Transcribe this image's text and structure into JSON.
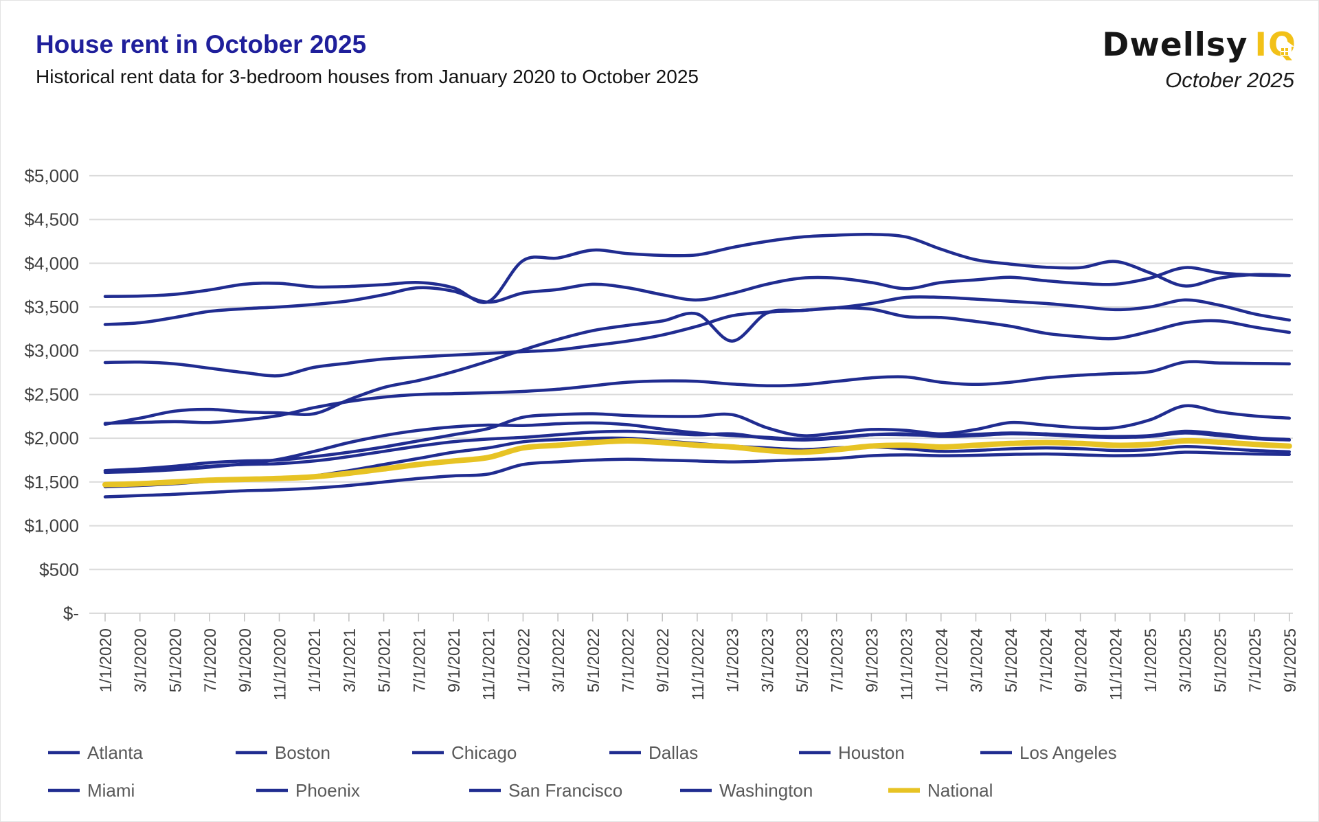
{
  "header": {
    "title": "House rent in October 2025",
    "subtitle": "Historical rent data for 3-bedroom houses from January 2020 to October 2025",
    "brand": "Dwellsy",
    "brand_suffix": "IQ",
    "date_label": "October 2025"
  },
  "colors": {
    "title": "#1F1F9B",
    "city_line": "#202C90",
    "national_line": "#E7C324",
    "grid": "#DBDBDB",
    "tick": "#C0C0C0",
    "axis_text": "#3F3F3F",
    "legend_text": "#595959"
  },
  "chart_data": {
    "type": "line",
    "title": "House rent in October 2025",
    "xlabel": "",
    "ylabel": "",
    "ylim": [
      0,
      5000
    ],
    "grid": "horizontal",
    "legend_position": "bottom",
    "y_tick_labels": [
      "$5,000",
      "$4,500",
      "$4,000",
      "$3,500",
      "$3,000",
      "$2,500",
      "$2,000",
      "$1,500",
      "$1,000",
      "$500",
      "$-"
    ],
    "y_tick_values": [
      5000,
      4500,
      4000,
      3500,
      3000,
      2500,
      2000,
      1500,
      1000,
      500,
      0
    ],
    "x_tick_labels": [
      "1/1/2020",
      "3/1/2020",
      "5/1/2020",
      "7/1/2020",
      "9/1/2020",
      "11/1/2020",
      "1/1/2021",
      "3/1/2021",
      "5/1/2021",
      "7/1/2021",
      "9/1/2021",
      "11/1/2021",
      "1/1/2022",
      "3/1/2022",
      "5/1/2022",
      "7/1/2022",
      "9/1/2022",
      "11/1/2022",
      "1/1/2023",
      "3/1/2023",
      "5/1/2023",
      "7/1/2023",
      "9/1/2023",
      "11/1/2023",
      "1/1/2024",
      "3/1/2024",
      "5/1/2024",
      "7/1/2024",
      "9/1/2024",
      "11/1/2024",
      "1/1/2025",
      "3/1/2025",
      "5/1/2025",
      "7/1/2025",
      "9/1/2025"
    ],
    "series": [
      {
        "name": "Atlanta",
        "color": "city",
        "values": [
          1445,
          1460,
          1480,
          1510,
          1530,
          1540,
          1570,
          1630,
          1700,
          1770,
          1840,
          1890,
          1960,
          1985,
          2000,
          2000,
          1970,
          1940,
          1910,
          1890,
          1870,
          1890,
          1900,
          1880,
          1850,
          1860,
          1880,
          1890,
          1880,
          1860,
          1870,
          1905,
          1885,
          1860,
          1845
        ]
      },
      {
        "name": "Boston",
        "color": "city",
        "values": [
          2865,
          2870,
          2850,
          2800,
          2750,
          2715,
          2810,
          2860,
          2905,
          2930,
          2950,
          2970,
          2990,
          3010,
          3060,
          3110,
          3180,
          3280,
          3400,
          3440,
          3460,
          3490,
          3475,
          3390,
          3380,
          3335,
          3280,
          3200,
          3160,
          3140,
          3220,
          3320,
          3340,
          3270,
          3210
        ]
      },
      {
        "name": "Chicago",
        "color": "city",
        "values": [
          1630,
          1650,
          1680,
          1720,
          1740,
          1750,
          1790,
          1840,
          1900,
          1970,
          2040,
          2110,
          2240,
          2270,
          2280,
          2260,
          2250,
          2250,
          2270,
          2120,
          2030,
          2060,
          2100,
          2090,
          2050,
          2100,
          2180,
          2150,
          2120,
          2120,
          2210,
          2370,
          2300,
          2255,
          2230
        ]
      },
      {
        "name": "Dallas",
        "color": "city",
        "values": [
          1625,
          1635,
          1650,
          1680,
          1700,
          1710,
          1740,
          1790,
          1850,
          1910,
          1960,
          1990,
          2010,
          2040,
          2070,
          2080,
          2060,
          2040,
          2050,
          2000,
          1980,
          2000,
          2040,
          2050,
          2020,
          2030,
          2050,
          2040,
          2020,
          2010,
          2020,
          2060,
          2030,
          1995,
          1980
        ]
      },
      {
        "name": "Houston",
        "color": "city",
        "values": [
          1330,
          1345,
          1360,
          1380,
          1400,
          1410,
          1430,
          1460,
          1500,
          1540,
          1570,
          1590,
          1700,
          1730,
          1750,
          1760,
          1750,
          1740,
          1730,
          1740,
          1755,
          1770,
          1800,
          1810,
          1800,
          1805,
          1815,
          1820,
          1810,
          1800,
          1810,
          1840,
          1830,
          1820,
          1815
        ]
      },
      {
        "name": "Los Angeles",
        "color": "city",
        "values": [
          3620,
          3625,
          3645,
          3695,
          3760,
          3770,
          3730,
          3735,
          3755,
          3780,
          3720,
          3560,
          4030,
          4060,
          4150,
          4110,
          4090,
          4095,
          4180,
          4250,
          4300,
          4320,
          4330,
          4300,
          4160,
          4040,
          3990,
          3955,
          3950,
          4020,
          3890,
          3740,
          3830,
          3870,
          3860
        ]
      },
      {
        "name": "Miami",
        "color": "city",
        "values": [
          2160,
          2230,
          2310,
          2330,
          2300,
          2290,
          2280,
          2440,
          2580,
          2660,
          2760,
          2880,
          3010,
          3130,
          3230,
          3290,
          3340,
          3420,
          3110,
          3430,
          3460,
          3490,
          3540,
          3610,
          3610,
          3590,
          3565,
          3540,
          3505,
          3470,
          3500,
          3580,
          3520,
          3420,
          3350
        ]
      },
      {
        "name": "Phoenix",
        "color": "city",
        "values": [
          1610,
          1620,
          1640,
          1670,
          1710,
          1760,
          1850,
          1950,
          2030,
          2090,
          2130,
          2150,
          2145,
          2165,
          2175,
          2155,
          2105,
          2060,
          2030,
          2010,
          1990,
          2010,
          2040,
          2040,
          2030,
          2045,
          2060,
          2050,
          2030,
          2020,
          2030,
          2080,
          2050,
          2005,
          1985
        ]
      },
      {
        "name": "San Francisco",
        "color": "city",
        "values": [
          3300,
          3320,
          3380,
          3450,
          3480,
          3500,
          3530,
          3570,
          3640,
          3720,
          3680,
          3555,
          3660,
          3700,
          3760,
          3720,
          3640,
          3580,
          3655,
          3760,
          3830,
          3830,
          3780,
          3710,
          3780,
          3810,
          3840,
          3800,
          3770,
          3760,
          3830,
          3950,
          3890,
          3865,
          3860
        ]
      },
      {
        "name": "Washington",
        "color": "city",
        "values": [
          2170,
          2180,
          2190,
          2180,
          2210,
          2260,
          2350,
          2420,
          2470,
          2500,
          2510,
          2520,
          2535,
          2560,
          2600,
          2640,
          2655,
          2650,
          2620,
          2600,
          2610,
          2650,
          2690,
          2700,
          2640,
          2615,
          2640,
          2690,
          2720,
          2740,
          2760,
          2870,
          2860,
          2855,
          2850
        ]
      },
      {
        "name": "National",
        "color": "national",
        "values": [
          1470,
          1480,
          1500,
          1520,
          1530,
          1540,
          1560,
          1600,
          1650,
          1700,
          1740,
          1780,
          1890,
          1920,
          1950,
          1970,
          1950,
          1920,
          1900,
          1860,
          1840,
          1870,
          1910,
          1920,
          1900,
          1920,
          1940,
          1950,
          1940,
          1920,
          1930,
          1970,
          1955,
          1930,
          1910
        ]
      }
    ],
    "legend_rows": [
      [
        "Atlanta",
        "Boston",
        "Chicago",
        "Dallas",
        "Houston",
        "Los Angeles"
      ],
      [
        "Miami",
        "Phoenix",
        "San Francisco",
        "Washington",
        "National"
      ]
    ]
  }
}
